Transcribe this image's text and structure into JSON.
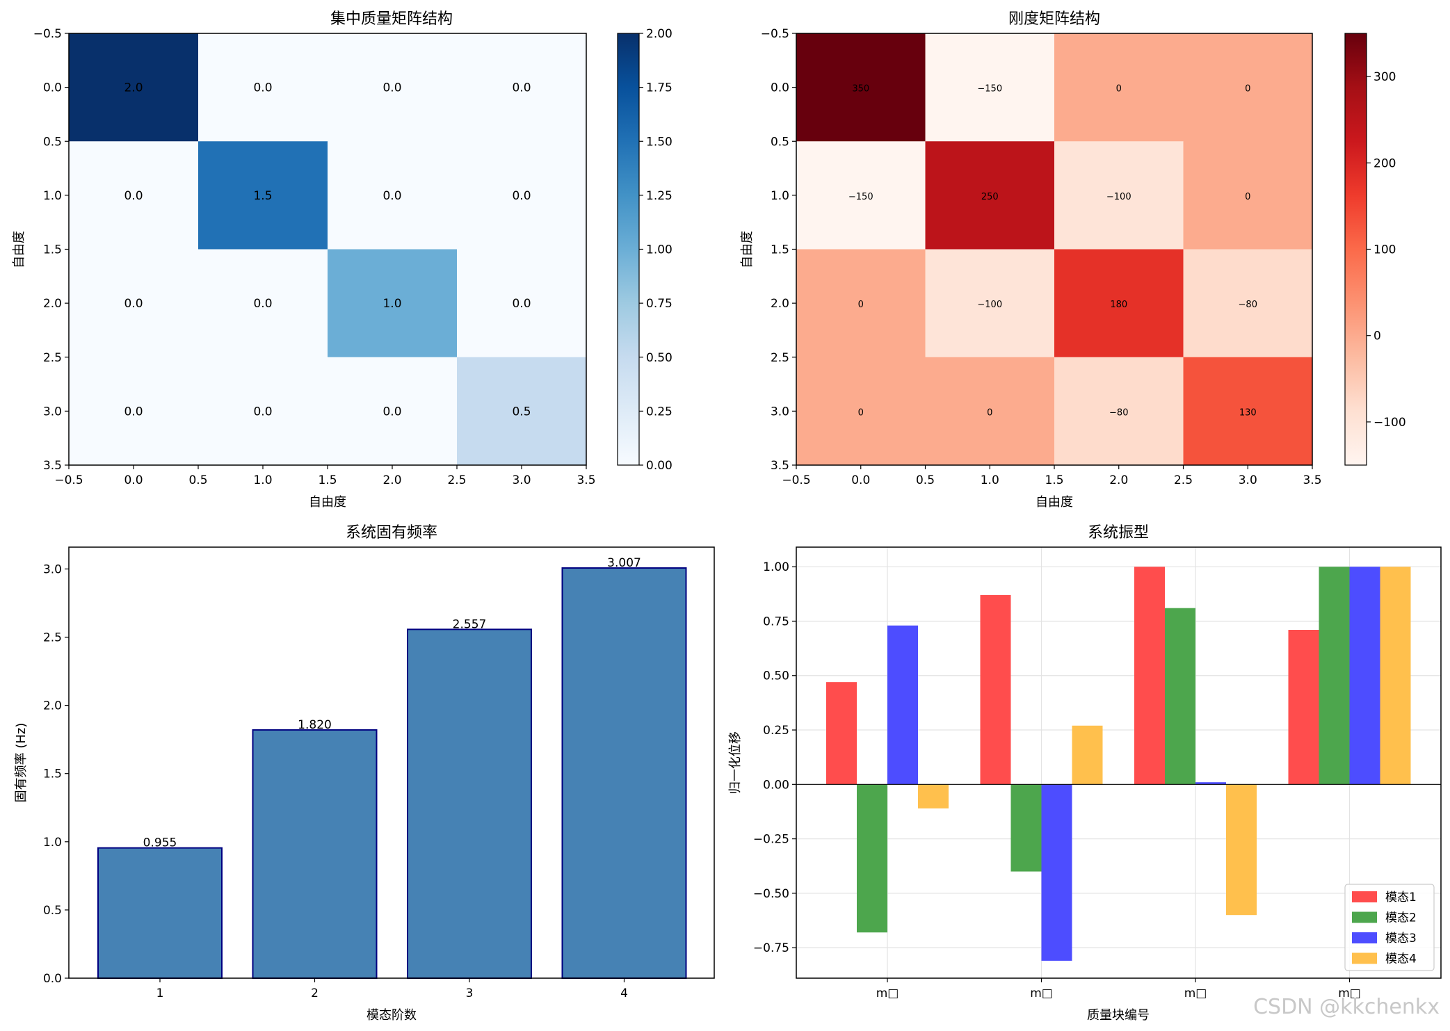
{
  "colors": {
    "bar_fill": "#4682b4",
    "bar_edge": "#000080",
    "modes": [
      "#ff4d4d",
      "#4da64d",
      "#4d4dff",
      "#ffc04d"
    ]
  },
  "chart_data": [
    {
      "type": "heatmap",
      "title": "集中质量矩阵结构",
      "xlabel": "自由度",
      "ylabel": "自由度",
      "colormap": "Blues",
      "values": [
        [
          2.0,
          0.0,
          0.0,
          0.0
        ],
        [
          0.0,
          1.5,
          0.0,
          0.0
        ],
        [
          0.0,
          0.0,
          1.0,
          0.0
        ],
        [
          0.0,
          0.0,
          0.0,
          0.5
        ]
      ],
      "cell_labels": [
        [
          "2.0",
          "0.0",
          "0.0",
          "0.0"
        ],
        [
          "0.0",
          "1.5",
          "0.0",
          "0.0"
        ],
        [
          "0.0",
          "0.0",
          "1.0",
          "0.0"
        ],
        [
          "0.0",
          "0.0",
          "0.0",
          "0.5"
        ]
      ],
      "xticks": [
        "−0.5",
        "0.0",
        "0.5",
        "1.0",
        "1.5",
        "2.0",
        "2.5",
        "3.0",
        "3.5"
      ],
      "yticks": [
        "−0.5",
        "0.0",
        "0.5",
        "1.0",
        "1.5",
        "2.0",
        "2.5",
        "3.0",
        "3.5"
      ],
      "colorbar_range": [
        0,
        2
      ],
      "colorbar_ticks": [
        "0.00",
        "0.25",
        "0.50",
        "0.75",
        "1.00",
        "1.25",
        "1.50",
        "1.75",
        "2.00"
      ]
    },
    {
      "type": "heatmap",
      "title": "刚度矩阵结构",
      "xlabel": "自由度",
      "ylabel": "自由度",
      "colormap": "Reds",
      "values": [
        [
          350,
          -150,
          0,
          0
        ],
        [
          -150,
          250,
          -100,
          0
        ],
        [
          0,
          -100,
          180,
          -80
        ],
        [
          0,
          0,
          -80,
          130
        ]
      ],
      "cell_labels": [
        [
          "350",
          "−150",
          "0",
          "0"
        ],
        [
          "−150",
          "250",
          "−100",
          "0"
        ],
        [
          "0",
          "−100",
          "180",
          "−80"
        ],
        [
          "0",
          "0",
          "−80",
          "130"
        ]
      ],
      "xticks": [
        "−0.5",
        "0.0",
        "0.5",
        "1.0",
        "1.5",
        "2.0",
        "2.5",
        "3.0",
        "3.5"
      ],
      "yticks": [
        "−0.5",
        "0.0",
        "0.5",
        "1.0",
        "1.5",
        "2.0",
        "2.5",
        "3.0",
        "3.5"
      ],
      "colorbar_range": [
        -150,
        350
      ],
      "colorbar_tick_values": [
        -100,
        0,
        100,
        200,
        300
      ],
      "colorbar_ticks": [
        "−100",
        "0",
        "100",
        "200",
        "300"
      ]
    },
    {
      "type": "bar",
      "title": "系统固有频率",
      "xlabel": "模态阶数",
      "ylabel": "固有频率 (Hz)",
      "categories": [
        "1",
        "2",
        "3",
        "4"
      ],
      "values": [
        0.955,
        1.82,
        2.557,
        3.007
      ],
      "value_labels": [
        "0.955",
        "1.820",
        "2.557",
        "3.007"
      ],
      "ylim": [
        0,
        3.16
      ],
      "yticks": [
        "0.0",
        "0.5",
        "1.0",
        "1.5",
        "2.0",
        "2.5",
        "3.0"
      ]
    },
    {
      "type": "bar",
      "title": "系统振型",
      "xlabel": "质量块编号",
      "ylabel": "归一化位移",
      "categories": [
        "m□",
        "m□",
        "m□",
        "m□"
      ],
      "series": [
        {
          "name": "模态1",
          "values": [
            0.47,
            0.87,
            1.0,
            0.71
          ]
        },
        {
          "name": "模态2",
          "values": [
            -0.68,
            -0.4,
            0.81,
            1.0
          ]
        },
        {
          "name": "模态3",
          "values": [
            0.73,
            -0.81,
            0.01,
            1.0
          ]
        },
        {
          "name": "模态4",
          "values": [
            -0.11,
            0.27,
            -0.6,
            1.0
          ]
        }
      ],
      "ylim": [
        -0.89,
        1.09
      ],
      "yticks": [
        "−0.75",
        "−0.50",
        "−0.25",
        "0.00",
        "0.25",
        "0.50",
        "0.75",
        "1.00"
      ],
      "grid": true,
      "legend_position": "lower-right"
    }
  ],
  "watermark": "CSDN @kkchenkx"
}
